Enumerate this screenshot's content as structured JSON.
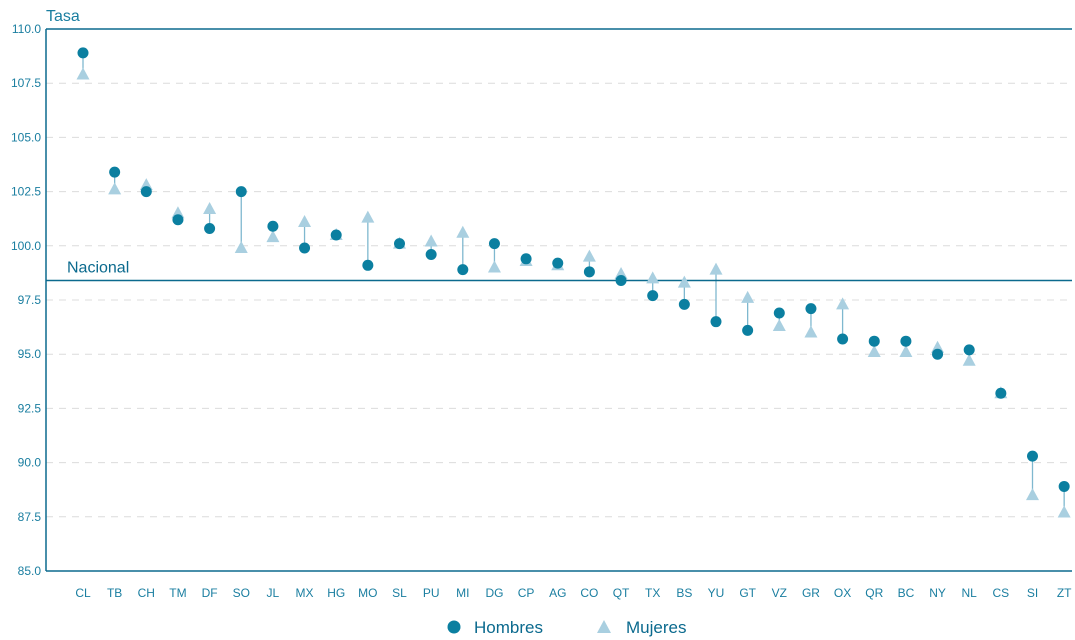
{
  "chart_data": {
    "type": "scatter",
    "title": "Tasa",
    "ylim": [
      85.0,
      110.0
    ],
    "yticks": [
      "85.0",
      "87.5",
      "90.0",
      "92.5",
      "95.0",
      "97.5",
      "100.0",
      "102.5",
      "105.0",
      "107.5",
      "110.0"
    ],
    "grid": "horizontal-dashed",
    "categories": [
      "CL",
      "TB",
      "CH",
      "TM",
      "DF",
      "SO",
      "JL",
      "MX",
      "HG",
      "MO",
      "SL",
      "PU",
      "MI",
      "DG",
      "CP",
      "AG",
      "CO",
      "QT",
      "TX",
      "BS",
      "YU",
      "GT",
      "VZ",
      "GR",
      "OX",
      "QR",
      "BC",
      "NY",
      "NL",
      "CS",
      "SI",
      "ZT"
    ],
    "series": [
      {
        "name": "Hombres",
        "marker": "circle",
        "color": "#0b7fa0",
        "values": [
          108.9,
          103.4,
          102.5,
          101.2,
          100.8,
          102.5,
          100.9,
          99.9,
          100.5,
          99.1,
          100.1,
          99.6,
          98.9,
          100.1,
          99.4,
          99.2,
          98.8,
          98.4,
          97.7,
          97.3,
          96.5,
          96.1,
          96.9,
          97.1,
          95.7,
          95.6,
          95.6,
          95.0,
          95.2,
          93.2,
          90.3,
          88.9
        ]
      },
      {
        "name": "Mujeres",
        "marker": "triangle",
        "color": "#a9cfe0",
        "values": [
          107.9,
          102.6,
          102.8,
          101.5,
          101.7,
          99.9,
          100.4,
          101.1,
          100.5,
          101.3,
          100.1,
          100.2,
          100.6,
          99.0,
          99.3,
          99.1,
          99.5,
          98.7,
          98.5,
          98.3,
          98.9,
          97.6,
          96.3,
          96.0,
          97.3,
          95.1,
          95.1,
          95.3,
          94.7,
          93.2,
          88.5,
          87.7
        ]
      }
    ],
    "reference_line": {
      "label": "Nacional",
      "value": 98.4,
      "color": "#0b6a8e"
    },
    "connector_color": "#7fb8cf",
    "axis_color": "#0b6a8e",
    "grid_color": "#dcdcdc",
    "legend_position": "bottom-center"
  }
}
